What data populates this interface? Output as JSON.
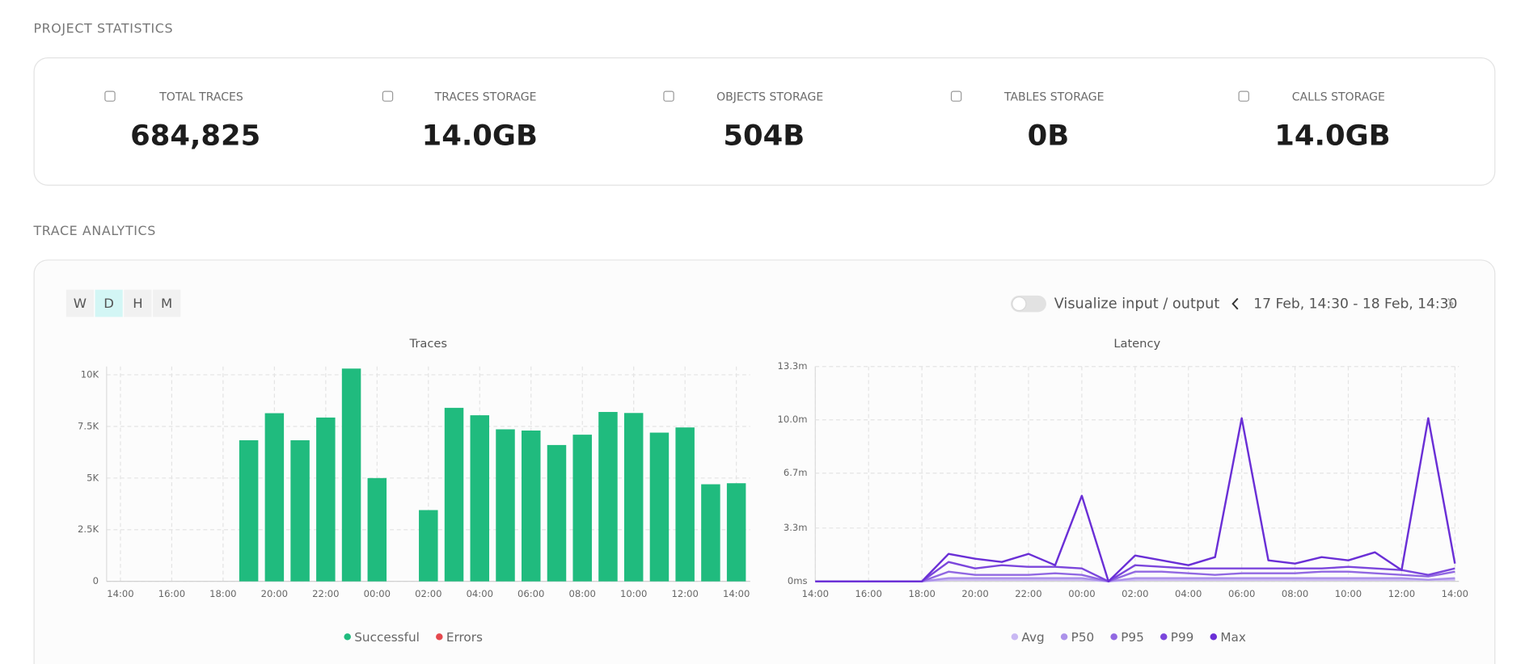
{
  "sections": {
    "stats_title": "PROJECT STATISTICS",
    "analytics_title": "TRACE ANALYTICS"
  },
  "stats": [
    {
      "label": "TOTAL TRACES",
      "value": "684,825"
    },
    {
      "label": "TRACES STORAGE",
      "value": "14.0GB"
    },
    {
      "label": "OBJECTS STORAGE",
      "value": "504B"
    },
    {
      "label": "TABLES STORAGE",
      "value": "0B"
    },
    {
      "label": "CALLS STORAGE",
      "value": "14.0GB"
    }
  ],
  "controls": {
    "periods": [
      "W",
      "D",
      "H",
      "M"
    ],
    "active_period": "D",
    "toggle_label": "Visualize input / output",
    "date_range": "17 Feb, 14:30 - 18 Feb, 14:30"
  },
  "chart_data": [
    {
      "type": "bar",
      "title": "Traces",
      "stacked": true,
      "grid": true,
      "categories": [
        "14:00",
        null,
        "16:00",
        null,
        "18:00",
        null,
        "20:00",
        null,
        "22:00",
        null,
        "00:00",
        null,
        "02:00",
        null,
        "04:00",
        null,
        "06:00",
        null,
        "08:00",
        null,
        "10:00",
        null,
        "12:00",
        null,
        "14:00"
      ],
      "series": [
        {
          "name": "Successful",
          "color": "#20bb7e",
          "values": [
            0,
            0,
            0,
            0,
            0,
            6830,
            8140,
            6830,
            7930,
            10300,
            5000,
            0,
            3450,
            8400,
            8040,
            7360,
            7300,
            6600,
            7100,
            8200,
            8150,
            7200,
            7450,
            4700,
            4750
          ]
        },
        {
          "name": "Errors",
          "color": "#e5484d",
          "values": [
            0,
            0,
            0,
            0,
            0,
            0,
            0,
            0,
            0,
            0,
            0,
            0,
            0,
            0,
            0,
            0,
            0,
            0,
            0,
            0,
            0,
            0,
            0,
            0,
            0
          ]
        }
      ],
      "ylim": [
        0,
        10400
      ],
      "yticks": [
        0,
        {
          "value": 2500,
          "label": "2.5K"
        },
        {
          "value": 5000,
          "label": "5K"
        },
        {
          "value": 7500,
          "label": "7.5K"
        },
        {
          "value": 10000,
          "label": "10K"
        }
      ]
    },
    {
      "type": "line",
      "title": "Latency",
      "grid": true,
      "categories": [
        "14:00",
        null,
        "16:00",
        null,
        "18:00",
        null,
        "20:00",
        null,
        "22:00",
        null,
        "00:00",
        null,
        "02:00",
        null,
        "04:00",
        null,
        "06:00",
        null,
        "08:00",
        null,
        "10:00",
        null,
        "12:00",
        null,
        "14:00"
      ],
      "series": [
        {
          "name": "Avg",
          "color": "#c9b8f3",
          "values": [
            0,
            0,
            0,
            0,
            0,
            0.1,
            0.1,
            0.1,
            0.1,
            0.1,
            0.1,
            0,
            0.1,
            0.1,
            0.1,
            0.1,
            0.1,
            0.1,
            0.1,
            0.1,
            0.1,
            0.1,
            0.1,
            0.1,
            0.1
          ]
        },
        {
          "name": "P50",
          "color": "#ac92ea",
          "values": [
            0,
            0,
            0,
            0,
            0,
            0.2,
            0.2,
            0.2,
            0.2,
            0.2,
            0.2,
            0,
            0.2,
            0.2,
            0.2,
            0.2,
            0.2,
            0.2,
            0.2,
            0.2,
            0.2,
            0.2,
            0.2,
            0.1,
            0.2
          ]
        },
        {
          "name": "P95",
          "color": "#9168e2",
          "values": [
            0,
            0,
            0,
            0,
            0,
            0.6,
            0.4,
            0.4,
            0.4,
            0.5,
            0.4,
            0,
            0.6,
            0.6,
            0.5,
            0.4,
            0.5,
            0.5,
            0.5,
            0.6,
            0.6,
            0.5,
            0.4,
            0.3,
            0.6
          ]
        },
        {
          "name": "P99",
          "color": "#7b46dc",
          "values": [
            0,
            0,
            0,
            0,
            0,
            1.2,
            0.8,
            1.0,
            0.9,
            0.9,
            0.8,
            0,
            1.0,
            0.9,
            0.8,
            0.8,
            0.8,
            0.8,
            0.8,
            0.8,
            0.9,
            0.8,
            0.7,
            0.4,
            0.8
          ]
        },
        {
          "name": "Max",
          "color": "#6a2fd6",
          "values": [
            0,
            0,
            0,
            0,
            0,
            1.7,
            1.4,
            1.2,
            1.7,
            1.0,
            5.3,
            0,
            1.6,
            1.3,
            1.0,
            1.5,
            10.1,
            1.3,
            1.1,
            1.5,
            1.3,
            1.8,
            0.7,
            10.1,
            1.1
          ]
        }
      ],
      "ylim": [
        0,
        13.3
      ],
      "yticks": [
        {
          "value": 0,
          "label": "0ms"
        },
        {
          "value": 3.3,
          "label": "3.3m"
        },
        {
          "value": 6.7,
          "label": "6.7m"
        },
        {
          "value": 10.0,
          "label": "10.0m"
        },
        {
          "value": 13.3,
          "label": "13.3m"
        }
      ]
    }
  ]
}
